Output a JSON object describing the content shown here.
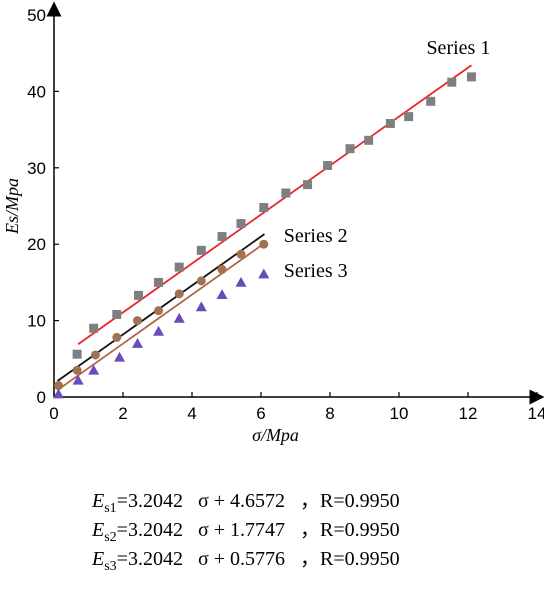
{
  "chart_data": {
    "type": "scatter",
    "title": "",
    "xlabel": "σ/Mpa",
    "ylabel": "Es/Mpa",
    "xlim": [
      0,
      14
    ],
    "ylim": [
      0,
      50
    ],
    "xticks": [
      0,
      2,
      4,
      6,
      8,
      10,
      12,
      14
    ],
    "yticks": [
      0,
      10,
      20,
      30,
      40,
      50
    ],
    "grid": false,
    "legend": "none",
    "series": [
      {
        "name": "Series 1",
        "marker": "square",
        "marker_color": "#7f7f7f",
        "line_color": "#e8262a",
        "fit": {
          "slope": 3.2042,
          "intercept": 4.6572,
          "x_range": [
            0.7,
            12.1
          ]
        },
        "x": [
          0.67,
          1.15,
          1.82,
          2.45,
          3.03,
          3.63,
          4.27,
          4.87,
          5.42,
          6.08,
          6.72,
          7.35,
          7.93,
          8.58,
          9.12,
          9.75,
          10.28,
          10.92,
          11.53,
          12.1
        ],
        "y": [
          5.6,
          9.0,
          10.8,
          13.3,
          15.0,
          17.0,
          19.2,
          21.0,
          22.7,
          24.8,
          26.7,
          27.8,
          30.3,
          32.5,
          33.6,
          35.8,
          36.7,
          38.7,
          41.2,
          41.9
        ]
      },
      {
        "name": "Series 2",
        "marker": "circle",
        "marker_color": "#a0724f",
        "line_color": "#111111",
        "fit": {
          "slope": 3.2042,
          "intercept": 1.7747,
          "x_range": [
            0.1,
            6.1
          ]
        },
        "x": [
          0.13,
          0.67,
          1.2,
          1.82,
          2.42,
          3.03,
          3.63,
          4.27,
          4.87,
          5.42,
          6.08
        ],
        "y": [
          1.5,
          3.5,
          5.5,
          7.8,
          10.0,
          11.3,
          13.5,
          15.2,
          16.7,
          18.7,
          20.0
        ]
      },
      {
        "name": "Series 3",
        "marker": "triangle",
        "marker_color": "#6a4cb8",
        "line_color": "#b5654a",
        "fit": {
          "slope": 3.2042,
          "intercept": 0.5776,
          "x_range": [
            0.1,
            6.1
          ]
        },
        "x": [
          0.13,
          0.7,
          1.15,
          1.9,
          2.42,
          3.03,
          3.63,
          4.27,
          4.87,
          5.42,
          6.08
        ],
        "y": [
          0.4,
          2.2,
          3.5,
          5.2,
          7.0,
          8.6,
          10.3,
          11.8,
          13.4,
          15.0,
          16.1
        ]
      }
    ],
    "equations": [
      {
        "symbol": "E",
        "sub": "s1",
        "formula": "=3.2042   σ + 4.6572",
        "sep": "，",
        "r": "R=0.9950"
      },
      {
        "symbol": "E",
        "sub": "s2",
        "formula": "=3.2042   σ + 1.7747",
        "sep": "，",
        "r": "R=0.9950"
      },
      {
        "symbol": "E",
        "sub": "s3",
        "formula": "=3.2042   σ + 0.5776",
        "sep": "，",
        "r": "R=0.9950"
      }
    ]
  }
}
